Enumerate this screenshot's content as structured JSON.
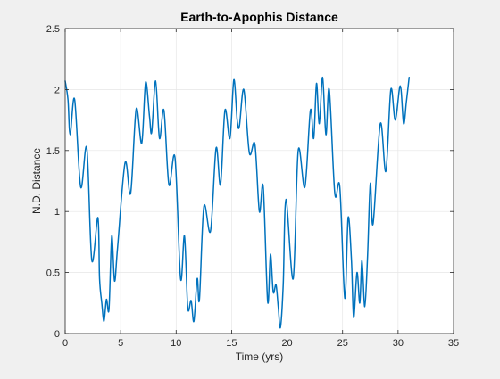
{
  "chart_data": {
    "type": "line",
    "title": "Earth-to-Apophis Distance",
    "xlabel": "Time (yrs)",
    "ylabel": "N.D. Distance",
    "xlim": [
      0,
      35
    ],
    "ylim": [
      0,
      2.5
    ],
    "xticks": [
      0,
      5,
      10,
      15,
      20,
      25,
      30,
      35
    ],
    "yticks": [
      0,
      0.5,
      1,
      1.5,
      2,
      2.5
    ],
    "xtick_labels": [
      "0",
      "5",
      "10",
      "15",
      "20",
      "25",
      "30",
      "35"
    ],
    "ytick_labels": [
      "0",
      "0.5",
      "1",
      "1.5",
      "2",
      "2.5"
    ],
    "grid": true,
    "line_color": "#0072bd",
    "series": [
      {
        "x": [
          0.0,
          0.25,
          0.45,
          0.85,
          1.4,
          1.95,
          2.4,
          2.95,
          3.1,
          3.3,
          3.5,
          3.72,
          3.95,
          4.2,
          4.45,
          4.72,
          5.4,
          5.9,
          6.4,
          6.9,
          7.25,
          7.6,
          7.8,
          8.15,
          8.5,
          8.9,
          9.35,
          9.9,
          10.4,
          10.75,
          11.05,
          11.35,
          11.6,
          11.9,
          12.1,
          12.5,
          13.1,
          13.6,
          14.0,
          14.4,
          14.85,
          15.2,
          15.5,
          15.7,
          16.1,
          16.6,
          17.1,
          17.5,
          17.85,
          18.25,
          18.5,
          18.75,
          19.0,
          19.2,
          19.4,
          19.65,
          19.9,
          20.55,
          21.0,
          21.6,
          22.1,
          22.4,
          22.65,
          22.9,
          23.2,
          23.5,
          23.8,
          24.3,
          24.75,
          25.2,
          25.5,
          25.8,
          26.0,
          26.3,
          26.55,
          26.75,
          27.0,
          27.25,
          27.5,
          27.75,
          28.4,
          28.9,
          29.35,
          29.75,
          30.2,
          30.5,
          30.75,
          31.0
        ],
        "y": [
          2.07,
          1.92,
          1.63,
          1.92,
          1.2,
          1.52,
          0.6,
          0.95,
          0.45,
          0.25,
          0.1,
          0.28,
          0.2,
          0.8,
          0.43,
          0.7,
          1.4,
          1.15,
          1.84,
          1.56,
          2.06,
          1.78,
          1.65,
          2.07,
          1.6,
          1.83,
          1.22,
          1.44,
          0.45,
          0.8,
          0.21,
          0.27,
          0.1,
          0.45,
          0.28,
          1.04,
          0.84,
          1.52,
          1.22,
          1.83,
          1.6,
          2.08,
          1.75,
          1.7,
          2.0,
          1.48,
          1.55,
          1.0,
          1.2,
          0.26,
          0.65,
          0.34,
          0.4,
          0.22,
          0.05,
          0.4,
          1.1,
          0.45,
          1.5,
          1.2,
          1.83,
          1.6,
          2.05,
          1.72,
          2.1,
          1.63,
          2.0,
          1.15,
          1.2,
          0.29,
          0.95,
          0.6,
          0.13,
          0.5,
          0.25,
          0.6,
          0.22,
          0.63,
          1.23,
          0.9,
          1.72,
          1.33,
          2.0,
          1.75,
          2.03,
          1.72,
          1.9,
          2.1
        ]
      }
    ]
  }
}
